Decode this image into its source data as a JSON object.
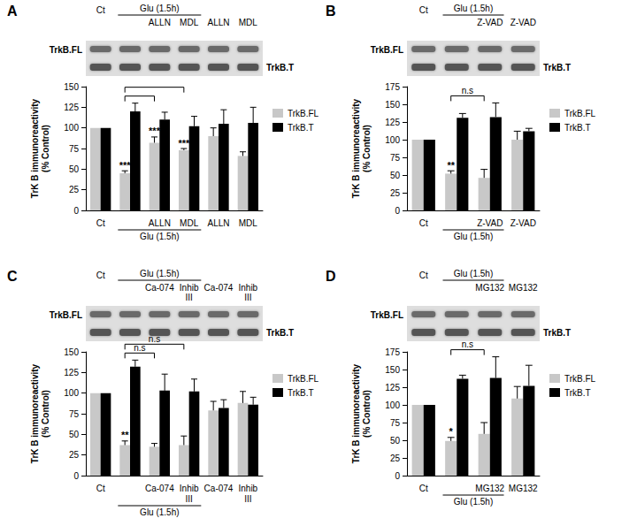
{
  "chart_data": [
    {
      "panel": "A",
      "type": "bar",
      "y_label": "TrK B immunoreactivity\n(% Control)",
      "categories": [
        "Ct",
        null,
        "ALLN",
        "MDL",
        "ALLN",
        "MDL"
      ],
      "group": {
        "label": "Glu (1.5h)",
        "from": 1,
        "to": 3
      },
      "series": [
        {
          "name": "TrkB.FL",
          "color": "#c8c8c8",
          "values": [
            100,
            45,
            82,
            73,
            90,
            66
          ],
          "errors": [
            null,
            3,
            7,
            2,
            10,
            5
          ],
          "significance": [
            null,
            "***",
            "***",
            "***",
            null,
            null
          ]
        },
        {
          "name": "TrkB.T",
          "color": "#000000",
          "values": [
            100,
            120,
            110,
            102,
            105,
            106
          ],
          "errors": [
            null,
            10,
            9,
            12,
            17,
            19
          ],
          "significance": [
            null,
            null,
            null,
            null,
            null,
            null
          ]
        }
      ],
      "comparisons": [
        {
          "from": 1,
          "to": 2
        },
        {
          "from": 1,
          "to": 3
        }
      ],
      "ylim": [
        0,
        150
      ],
      "yticks": [
        0,
        25,
        50,
        75,
        100,
        125,
        150
      ],
      "grid": false,
      "legend": "right"
    },
    {
      "panel": "B",
      "type": "bar",
      "y_label": "TrK B immunoreactivity\n(% Control)",
      "categories": [
        "Ct",
        null,
        "Z-VAD",
        "Z-VAD"
      ],
      "group": {
        "label": "Glu (1.5h)",
        "from": 1,
        "to": 2
      },
      "series": [
        {
          "name": "TrkB.FL",
          "color": "#c8c8c8",
          "values": [
            100,
            52,
            46,
            100
          ],
          "errors": [
            null,
            4,
            12,
            12
          ],
          "significance": [
            null,
            "**",
            null,
            null
          ]
        },
        {
          "name": "TrkB.T",
          "color": "#000000",
          "values": [
            100,
            131,
            132,
            112
          ],
          "errors": [
            null,
            6,
            20,
            4
          ],
          "significance": [
            null,
            null,
            null,
            null
          ]
        }
      ],
      "comparisons": [
        {
          "from": 1,
          "to": 2,
          "label": "n.s"
        }
      ],
      "ylim": [
        0,
        175
      ],
      "yticks": [
        0,
        25,
        50,
        75,
        100,
        125,
        150,
        175
      ],
      "grid": false,
      "legend": "right"
    },
    {
      "panel": "C",
      "type": "bar",
      "y_label": "TrK B immunoreactivity\n(% Control)",
      "categories": [
        "Ct",
        null,
        "Ca-074",
        "Inhib\nIII",
        "Ca-074",
        "Inhib\nIII"
      ],
      "group": {
        "label": "Glu (1.5h)",
        "from": 1,
        "to": 3
      },
      "series": [
        {
          "name": "TrkB.FL",
          "color": "#c8c8c8",
          "values": [
            100,
            37,
            35,
            37,
            79,
            88
          ],
          "errors": [
            null,
            5,
            4,
            11,
            11,
            14
          ],
          "significance": [
            null,
            "**",
            null,
            null,
            null,
            null
          ]
        },
        {
          "name": "TrkB.T",
          "color": "#000000",
          "values": [
            100,
            132,
            103,
            102,
            82,
            86
          ],
          "errors": [
            null,
            8,
            20,
            15,
            10,
            9
          ],
          "significance": [
            null,
            null,
            null,
            null,
            null,
            null
          ]
        }
      ],
      "comparisons": [
        {
          "from": 1,
          "to": 2,
          "label": "n.s"
        },
        {
          "from": 1,
          "to": 3,
          "label": "n.s"
        }
      ],
      "ylim": [
        0,
        150
      ],
      "yticks": [
        0,
        25,
        50,
        75,
        100,
        125,
        150
      ],
      "grid": false,
      "legend": "right"
    },
    {
      "panel": "D",
      "type": "bar",
      "y_label": "TrK B immunoreactivity\n(% Control)",
      "categories": [
        "Ct",
        null,
        "MG132",
        "MG132"
      ],
      "group": {
        "label": "Glu (1.5h)",
        "from": 1,
        "to": 2
      },
      "series": [
        {
          "name": "TrkB.FL",
          "color": "#c8c8c8",
          "values": [
            100,
            49,
            59,
            109
          ],
          "errors": [
            null,
            5,
            16,
            17
          ],
          "significance": [
            null,
            "*",
            null,
            null
          ]
        },
        {
          "name": "TrkB.T",
          "color": "#000000",
          "values": [
            100,
            137,
            138,
            127
          ],
          "errors": [
            null,
            5,
            30,
            29
          ],
          "significance": [
            null,
            null,
            null,
            null
          ]
        }
      ],
      "comparisons": [
        {
          "from": 1,
          "to": 2,
          "label": "n.s"
        }
      ],
      "ylim": [
        0,
        175
      ],
      "yticks": [
        0,
        25,
        50,
        75,
        100,
        125,
        150,
        175
      ],
      "grid": false,
      "legend": "right"
    }
  ]
}
